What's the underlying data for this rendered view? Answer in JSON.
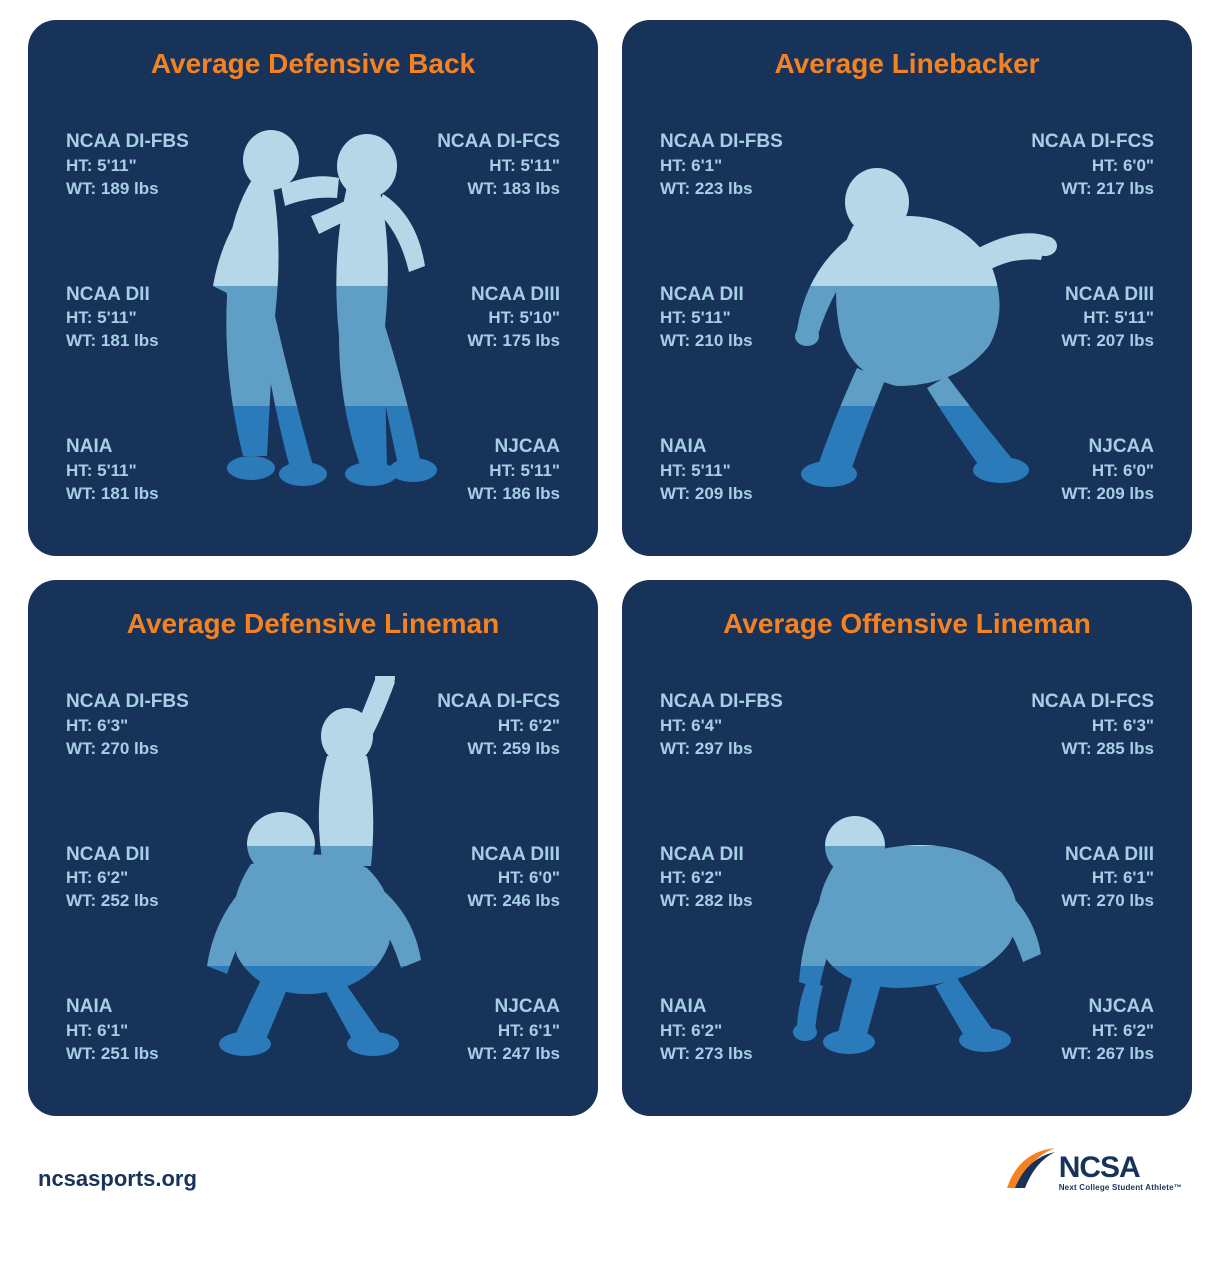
{
  "colors": {
    "card_bg": "#17335a",
    "title": "#f58220",
    "text": "#a6cfe6",
    "sil_top": "#b6d7e8",
    "sil_mid": "#5f9fc6",
    "sil_bot": "#2b7ab9",
    "footer": "#17335a",
    "logo_accent": "#f58220"
  },
  "footer_url": "ncsasports.org",
  "logo": {
    "main": "NCSA",
    "sub": "Next College Student Athlete™"
  },
  "cards": [
    {
      "title": "Average Defensive Back",
      "silhouette": "db",
      "left": [
        {
          "label": "NCAA DI-FBS",
          "ht": "HT: 5'11\"",
          "wt": "WT: 189 lbs"
        },
        {
          "label": "NCAA DII",
          "ht": "HT: 5'11\"",
          "wt": "WT: 181 lbs"
        },
        {
          "label": "NAIA",
          "ht": "HT: 5'11\"",
          "wt": "WT: 181 lbs"
        }
      ],
      "right": [
        {
          "label": "NCAA DI-FCS",
          "ht": "HT: 5'11\"",
          "wt": "WT: 183 lbs"
        },
        {
          "label": "NCAA DIII",
          "ht": "HT: 5'10\"",
          "wt": "WT: 175 lbs"
        },
        {
          "label": "NJCAA",
          "ht": "HT: 5'11\"",
          "wt": "WT: 186 lbs"
        }
      ]
    },
    {
      "title": "Average Linebacker",
      "silhouette": "lb",
      "left": [
        {
          "label": "NCAA DI-FBS",
          "ht": "HT: 6'1\"",
          "wt": "WT: 223 lbs"
        },
        {
          "label": "NCAA DII",
          "ht": "HT: 5'11\"",
          "wt": "WT: 210 lbs"
        },
        {
          "label": "NAIA",
          "ht": "HT: 5'11\"",
          "wt": "WT: 209 lbs"
        }
      ],
      "right": [
        {
          "label": "NCAA DI-FCS",
          "ht": "HT: 6'0\"",
          "wt": "WT: 217 lbs"
        },
        {
          "label": "NCAA DIII",
          "ht": "HT: 5'11\"",
          "wt": "WT: 207 lbs"
        },
        {
          "label": "NJCAA",
          "ht": "HT: 6'0\"",
          "wt": "WT: 209 lbs"
        }
      ]
    },
    {
      "title": "Average Defensive Lineman",
      "silhouette": "dl",
      "left": [
        {
          "label": "NCAA DI-FBS",
          "ht": "HT: 6'3\"",
          "wt": "WT: 270 lbs"
        },
        {
          "label": "NCAA DII",
          "ht": "HT: 6'2\"",
          "wt": "WT: 252 lbs"
        },
        {
          "label": "NAIA",
          "ht": "HT: 6'1\"",
          "wt": "WT: 251 lbs"
        }
      ],
      "right": [
        {
          "label": "NCAA DI-FCS",
          "ht": "HT: 6'2\"",
          "wt": "WT: 259 lbs"
        },
        {
          "label": "NCAA DIII",
          "ht": "HT: 6'0\"",
          "wt": "WT: 246 lbs"
        },
        {
          "label": "NJCAA",
          "ht": "HT: 6'1\"",
          "wt": "WT: 247 lbs"
        }
      ]
    },
    {
      "title": "Average Offensive Lineman",
      "silhouette": "ol",
      "left": [
        {
          "label": "NCAA DI-FBS",
          "ht": "HT: 6'4\"",
          "wt": "WT: 297 lbs"
        },
        {
          "label": "NCAA DII",
          "ht": "HT: 6'2\"",
          "wt": "WT: 282 lbs"
        },
        {
          "label": "NAIA",
          "ht": "HT: 6'2\"",
          "wt": "WT: 273 lbs"
        }
      ],
      "right": [
        {
          "label": "NCAA DI-FCS",
          "ht": "HT: 6'3\"",
          "wt": "WT: 285 lbs"
        },
        {
          "label": "NCAA DIII",
          "ht": "HT: 6'1\"",
          "wt": "WT: 270 lbs"
        },
        {
          "label": "NJCAA",
          "ht": "HT: 6'2\"",
          "wt": "WT: 267 lbs"
        }
      ]
    }
  ]
}
